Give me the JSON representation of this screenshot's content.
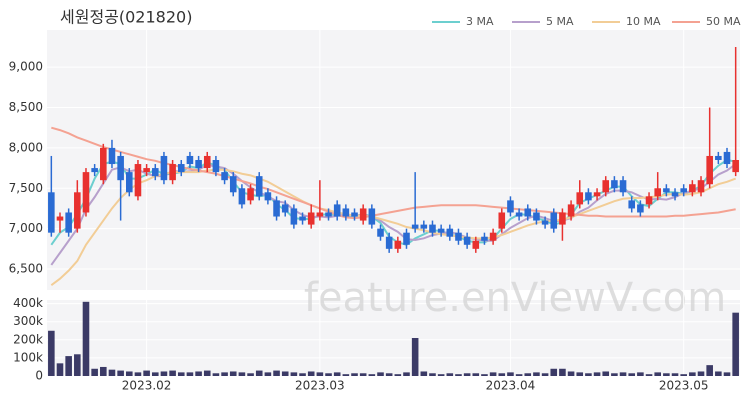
{
  "chart_data": [
    {
      "type": "candlestick",
      "title": "세원정공(021820)",
      "categories": [
        null,
        null,
        null,
        null,
        null,
        null,
        null,
        null,
        null,
        null,
        null,
        "2023.02",
        null,
        null,
        null,
        null,
        null,
        null,
        null,
        null,
        null,
        null,
        null,
        null,
        null,
        null,
        null,
        null,
        null,
        null,
        null,
        "2023.03",
        null,
        null,
        null,
        null,
        null,
        null,
        null,
        null,
        null,
        null,
        null,
        null,
        null,
        null,
        null,
        null,
        null,
        null,
        null,
        null,
        null,
        "2023.04",
        null,
        null,
        null,
        null,
        null,
        null,
        null,
        null,
        null,
        null,
        null,
        null,
        null,
        null,
        null,
        null,
        null,
        null,
        null,
        "2023.05",
        null,
        null,
        null,
        null,
        null,
        null
      ],
      "open": [
        7450,
        7100,
        7200,
        7000,
        7200,
        7750,
        7600,
        8000,
        7900,
        7700,
        7400,
        7700,
        7750,
        7900,
        7600,
        7800,
        7900,
        7850,
        7750,
        7850,
        7700,
        7650,
        7500,
        7350,
        7650,
        7450,
        7350,
        7300,
        7250,
        7150,
        7050,
        7150,
        7200,
        7300,
        7250,
        7200,
        7100,
        7250,
        7000,
        6900,
        6750,
        6950,
        7050,
        7050,
        7050,
        7000,
        7000,
        6950,
        6900,
        6750,
        6900,
        6850,
        7000,
        7350,
        7200,
        7250,
        7200,
        7100,
        7200,
        7050,
        7150,
        7300,
        7450,
        7400,
        7450,
        7600,
        7600,
        7350,
        7300,
        7300,
        7400,
        7500,
        7450,
        7500,
        7450,
        7450,
        7550,
        7900,
        7950,
        7700
      ],
      "high": [
        7900,
        7200,
        7250,
        7600,
        7750,
        7800,
        8050,
        8100,
        7950,
        7750,
        7850,
        7800,
        7800,
        7950,
        7850,
        7850,
        7950,
        7900,
        7950,
        7900,
        7750,
        7700,
        7550,
        7550,
        7700,
        7500,
        7400,
        7350,
        7300,
        7200,
        7300,
        7600,
        7250,
        7350,
        7300,
        7250,
        7300,
        7300,
        7050,
        6950,
        6900,
        7000,
        7700,
        7100,
        7100,
        7050,
        7050,
        7000,
        6950,
        6900,
        6950,
        7000,
        7250,
        7400,
        7250,
        7300,
        7250,
        7150,
        7250,
        7250,
        7350,
        7600,
        7500,
        7500,
        7650,
        7650,
        7650,
        7400,
        7350,
        7450,
        7700,
        7550,
        7500,
        7550,
        7600,
        7650,
        8500,
        7950,
        8000,
        9250
      ],
      "low": [
        6900,
        6950,
        6900,
        6950,
        7150,
        7650,
        7550,
        7750,
        7100,
        7400,
        7350,
        7650,
        7600,
        7550,
        7550,
        7650,
        7750,
        7700,
        7700,
        7650,
        7550,
        7400,
        7250,
        7300,
        7350,
        7300,
        7100,
        7150,
        7000,
        7050,
        7000,
        7100,
        7100,
        7100,
        7100,
        7100,
        7050,
        7000,
        6850,
        6700,
        6700,
        6750,
        6950,
        6950,
        6900,
        6900,
        6850,
        6800,
        6750,
        6700,
        6800,
        6800,
        6950,
        7150,
        7100,
        7100,
        7050,
        7000,
        6950,
        6850,
        7100,
        7250,
        7300,
        7350,
        7400,
        7450,
        7400,
        7200,
        7150,
        7250,
        7350,
        7400,
        7350,
        7400,
        7400,
        7400,
        7500,
        7800,
        7750,
        7650
      ],
      "close": [
        6950,
        7150,
        6950,
        7450,
        7700,
        7700,
        8000,
        7800,
        7600,
        7450,
        7800,
        7750,
        7650,
        7600,
        7800,
        7700,
        7800,
        7750,
        7900,
        7700,
        7600,
        7450,
        7300,
        7500,
        7400,
        7350,
        7150,
        7200,
        7050,
        7100,
        7200,
        7200,
        7150,
        7150,
        7150,
        7150,
        7250,
        7050,
        6900,
        6750,
        6850,
        6800,
        7000,
        7000,
        6950,
        6950,
        6900,
        6850,
        6800,
        6850,
        6850,
        6950,
        7200,
        7200,
        7150,
        7150,
        7100,
        7050,
        7000,
        7200,
        7300,
        7450,
        7350,
        7450,
        7600,
        7500,
        7450,
        7250,
        7200,
        7400,
        7500,
        7450,
        7400,
        7450,
        7550,
        7600,
        7900,
        7850,
        7800,
        7850
      ],
      "up_color": "#e8312f",
      "down_color": "#2a6bd3",
      "series": [
        {
          "name": "3 MA",
          "color": "#6ccfcf",
          "values": [
            6800,
            6950,
            7020,
            7180,
            7370,
            7620,
            7800,
            7830,
            7800,
            7620,
            7620,
            7670,
            7730,
            7670,
            7680,
            7700,
            7770,
            7750,
            7820,
            7780,
            7730,
            7580,
            7450,
            7420,
            7400,
            7420,
            7300,
            7230,
            7130,
            7120,
            7120,
            7170,
            7180,
            7170,
            7150,
            7150,
            7180,
            7150,
            7070,
            6900,
            6830,
            6800,
            6880,
            6930,
            6980,
            6970,
            6930,
            6900,
            6850,
            6830,
            6830,
            6880,
            7000,
            7120,
            7180,
            7170,
            7130,
            7100,
            7050,
            7080,
            7170,
            7320,
            7370,
            7420,
            7470,
            7520,
            7520,
            7400,
            7300,
            7280,
            7370,
            7450,
            7450,
            7430,
            7470,
            7530,
            7680,
            7780,
            7850,
            7830
          ]
        },
        {
          "name": "5 MA",
          "color": "#b7a0cc",
          "values": [
            6550,
            6700,
            6850,
            7000,
            7240,
            7390,
            7560,
            7730,
            7760,
            7710,
            7730,
            7680,
            7650,
            7650,
            7720,
            7700,
            7710,
            7730,
            7790,
            7770,
            7750,
            7680,
            7590,
            7510,
            7450,
            7400,
            7340,
            7320,
            7230,
            7170,
            7140,
            7150,
            7140,
            7160,
            7170,
            7160,
            7170,
            7150,
            7100,
            7020,
            6960,
            6870,
            6860,
            6880,
            6920,
            6940,
            6960,
            6930,
            6890,
            6870,
            6850,
            6850,
            6930,
            7010,
            7070,
            7130,
            7160,
            7130,
            7090,
            7100,
            7130,
            7210,
            7260,
            7350,
            7430,
            7470,
            7470,
            7450,
            7400,
            7360,
            7370,
            7360,
            7390,
            7440,
            7470,
            7500,
            7580,
            7670,
            7720,
            7800
          ]
        },
        {
          "name": "10 MA",
          "color": "#f2cd96",
          "values": [
            6300,
            6380,
            6480,
            6600,
            6800,
            6950,
            7100,
            7250,
            7380,
            7480,
            7560,
            7600,
            7650,
            7680,
            7700,
            7700,
            7700,
            7700,
            7720,
            7730,
            7730,
            7710,
            7680,
            7660,
            7620,
            7580,
            7520,
            7460,
            7400,
            7340,
            7290,
            7250,
            7230,
            7200,
            7180,
            7160,
            7160,
            7150,
            7120,
            7090,
            7060,
            7020,
            7000,
            6980,
            6950,
            6930,
            6920,
            6900,
            6890,
            6880,
            6880,
            6890,
            6920,
            6960,
            7000,
            7040,
            7070,
            7090,
            7100,
            7110,
            7140,
            7180,
            7220,
            7260,
            7300,
            7340,
            7370,
            7380,
            7380,
            7390,
            7400,
            7420,
            7430,
            7420,
            7430,
            7450,
            7500,
            7550,
            7580,
            7620
          ]
        },
        {
          "name": "50 MA",
          "color": "#f4a292",
          "values": [
            8250,
            8220,
            8180,
            8130,
            8090,
            8050,
            8010,
            7980,
            7950,
            7920,
            7890,
            7860,
            7840,
            7810,
            7790,
            7760,
            7740,
            7720,
            7700,
            7680,
            7650,
            7620,
            7590,
            7560,
            7520,
            7490,
            7450,
            7410,
            7370,
            7330,
            7290,
            7250,
            7210,
            7170,
            7140,
            7130,
            7140,
            7160,
            7180,
            7200,
            7220,
            7240,
            7260,
            7270,
            7280,
            7290,
            7290,
            7290,
            7290,
            7290,
            7280,
            7270,
            7260,
            7250,
            7240,
            7230,
            7220,
            7210,
            7200,
            7190,
            7180,
            7170,
            7160,
            7160,
            7150,
            7150,
            7150,
            7150,
            7150,
            7150,
            7150,
            7150,
            7160,
            7160,
            7170,
            7180,
            7190,
            7200,
            7220,
            7240
          ]
        }
      ],
      "ylim": [
        6240,
        9460
      ],
      "yticks": [
        {
          "value": 6500,
          "label": "6,500"
        },
        {
          "value": 7000,
          "label": "7,000"
        },
        {
          "value": 7500,
          "label": "7,500"
        },
        {
          "value": 8000,
          "label": "8,000"
        },
        {
          "value": 8500,
          "label": "8,500"
        },
        {
          "value": 9000,
          "label": "9,000"
        }
      ],
      "grid": true,
      "legend": "top-right",
      "watermark": "feature.enViewV.com"
    },
    {
      "type": "bar",
      "color": "#3b3a66",
      "values": [
        250000,
        70000,
        110000,
        120000,
        410000,
        40000,
        50000,
        35000,
        30000,
        25000,
        20000,
        30000,
        20000,
        25000,
        30000,
        20000,
        20000,
        25000,
        30000,
        15000,
        20000,
        25000,
        20000,
        15000,
        30000,
        20000,
        30000,
        25000,
        20000,
        15000,
        25000,
        20000,
        15000,
        20000,
        10000,
        15000,
        15000,
        10000,
        20000,
        15000,
        10000,
        20000,
        210000,
        25000,
        15000,
        10000,
        15000,
        10000,
        15000,
        15000,
        10000,
        20000,
        15000,
        20000,
        10000,
        15000,
        20000,
        15000,
        40000,
        40000,
        25000,
        20000,
        15000,
        20000,
        25000,
        15000,
        20000,
        15000,
        20000,
        10000,
        20000,
        15000,
        15000,
        10000,
        20000,
        25000,
        60000,
        25000,
        20000,
        350000
      ],
      "ylim": [
        0,
        420000
      ],
      "yticks": [
        0,
        {
          "value": 100000,
          "label": "100k"
        },
        {
          "value": 200000,
          "label": "200k"
        },
        {
          "value": 300000,
          "label": "300k"
        },
        {
          "value": 400000,
          "label": "400k"
        }
      ],
      "grid": true
    }
  ]
}
